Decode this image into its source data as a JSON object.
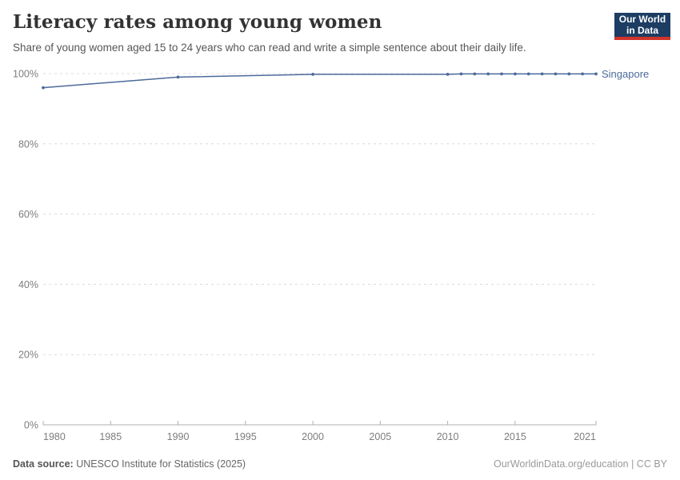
{
  "header": {
    "title": "Literacy rates among young women",
    "subtitle": "Share of young women aged 15 to 24 years who can read and write a simple sentence about their daily life."
  },
  "logo": {
    "line1": "Our World",
    "line2": "in Data",
    "bg_color": "#1d3d63",
    "accent_color": "#d0342a"
  },
  "footer": {
    "source_label": "Data source:",
    "source_value": " UNESCO Institute for Statistics (2025)",
    "credit": "OurWorldinData.org/education | CC BY"
  },
  "chart_data": {
    "type": "line",
    "title": "Literacy rates among young women",
    "xlabel": "",
    "ylabel": "",
    "xlim": [
      1980,
      2021
    ],
    "ylim": [
      0,
      100
    ],
    "xticks": [
      1980,
      1985,
      1990,
      1995,
      2000,
      2005,
      2010,
      2015,
      2021
    ],
    "yticks": [
      0,
      20,
      40,
      60,
      80,
      100
    ],
    "ytick_suffix": "%",
    "grid": "horizontal-dashed",
    "legend_position": "end-of-line",
    "colors": {
      "gridline": "#dcdcdc",
      "axis": "#b0b0b0",
      "tick_label": "#7d7d7d"
    },
    "series": [
      {
        "name": "Singapore",
        "color": "#4c6a9c",
        "points": [
          [
            1980,
            96.0
          ],
          [
            1990,
            99.0
          ],
          [
            2000,
            99.8
          ],
          [
            2010,
            99.8
          ],
          [
            2011,
            99.9
          ],
          [
            2012,
            99.9
          ],
          [
            2013,
            99.9
          ],
          [
            2014,
            99.9
          ],
          [
            2015,
            99.9
          ],
          [
            2016,
            99.9
          ],
          [
            2017,
            99.9
          ],
          [
            2018,
            99.9
          ],
          [
            2019,
            99.9
          ],
          [
            2020,
            99.9
          ],
          [
            2021,
            99.9
          ]
        ]
      }
    ]
  }
}
